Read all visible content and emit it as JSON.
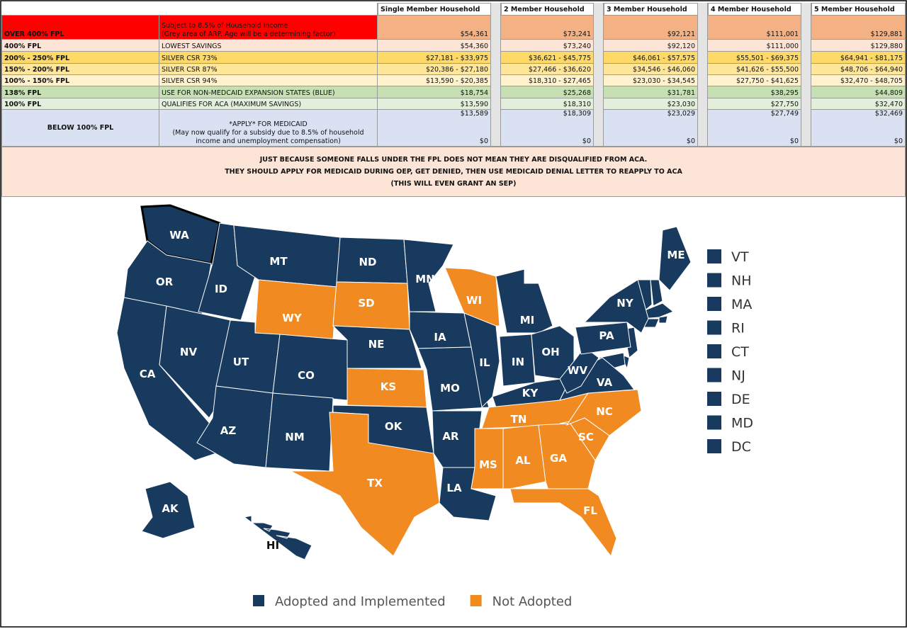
{
  "table": {
    "headers": [
      "Single Member Household",
      "2 Member Household",
      "3 Member Household",
      "4 Member Household",
      "5 Member Household"
    ],
    "rows": [
      {
        "label": "OVER 400% FPL",
        "description": [
          "Subject to 8.5% of Household income",
          "(Grey area of ARP. Age will be a determining factor)"
        ],
        "values": [
          "$54,361",
          "$73,241",
          "$92,121",
          "$111,001",
          "$129,881"
        ]
      },
      {
        "label": "400% FPL",
        "description": [
          "LOWEST SAVINGS"
        ],
        "values": [
          "$54,360",
          "$73,240",
          "$92,120",
          "$111,000",
          "$129,880"
        ]
      },
      {
        "label": "200% - 250% FPL",
        "description": [
          "SILVER CSR 73%"
        ],
        "values": [
          "$27,181 - $33,975",
          "$36,621 - $45,775",
          "$46,061 - $57,575",
          "$55,501 - $69,375",
          "$64,941 - $81,175"
        ]
      },
      {
        "label": "150% - 200% FPL",
        "description": [
          "SILVER CSR 87%"
        ],
        "values": [
          "$20,386 - $27,180",
          "$27,466 - $36,620",
          "$34,546 - $46,060",
          "$41,626 - $55,500",
          "$48,706 - $64,940"
        ]
      },
      {
        "label": "100% - 150% FPL",
        "description": [
          "SILVER CSR 94%"
        ],
        "values": [
          "$13,590 - $20,385",
          "$18,310 - $27,465",
          "$23,030 - $34,545",
          "$27,750 - $41,625",
          "$32,470 - $48,705"
        ]
      },
      {
        "label": "138% FPL",
        "description": [
          "USE FOR NON-MEDCAID EXPANSION STATES (BLUE)"
        ],
        "values": [
          "$18,754",
          "$25,268",
          "$31,781",
          "$38,295",
          "$44,809"
        ]
      },
      {
        "label": "100% FPL",
        "description": [
          "QUALIFIES FOR ACA (MAXIMUM SAVINGS)"
        ],
        "values": [
          "$13,590",
          "$18,310",
          "$23,030",
          "$27,750",
          "$32,470"
        ]
      },
      {
        "label": "BELOW 100% FPL",
        "description": [
          "*APPLY* FOR MEDICAID",
          "(May now qualify for a subsidy due to 8.5% of household",
          "income and unemployment compensation)"
        ],
        "values": [
          "$13,589",
          "$18,309",
          "$23,029",
          "$27,749",
          "$32,469"
        ],
        "bottom_values": [
          "$0",
          "$0",
          "$0",
          "$0",
          "$0"
        ]
      }
    ]
  },
  "notice": [
    "JUST BECAUSE SOMEONE FALLS UNDER THE FPL DOES NOT MEAN THEY ARE DISQUALIFIED FROM ACA.",
    "THEY SHOULD APPLY FOR MEDICAID DURING OEP, GET DENIED, THEN USE MEDICAID DENIAL LETTER TO REAPPLY TO ACA",
    "(THIS WILL EVEN GRANT AN SEP)"
  ],
  "map": {
    "legend": [
      {
        "label": "Adopted and Implemented",
        "color": "#173a5e"
      },
      {
        "label": "Not Adopted",
        "color": "#f28a22"
      }
    ],
    "states": [
      {
        "label": "WA",
        "status": "Adopted and Implemented"
      },
      {
        "label": "OR",
        "status": "Adopted and Implemented"
      },
      {
        "label": "CA",
        "status": "Adopted and Implemented"
      },
      {
        "label": "NV",
        "status": "Adopted and Implemented"
      },
      {
        "label": "ID",
        "status": "Adopted and Implemented"
      },
      {
        "label": "MT",
        "status": "Adopted and Implemented"
      },
      {
        "label": "WY",
        "status": "Not Adopted"
      },
      {
        "label": "UT",
        "status": "Adopted and Implemented"
      },
      {
        "label": "CO",
        "status": "Adopted and Implemented"
      },
      {
        "label": "AZ",
        "status": "Adopted and Implemented"
      },
      {
        "label": "NM",
        "status": "Adopted and Implemented"
      },
      {
        "label": "ND",
        "status": "Adopted and Implemented"
      },
      {
        "label": "SD",
        "status": "Not Adopted"
      },
      {
        "label": "NE",
        "status": "Adopted and Implemented"
      },
      {
        "label": "KS",
        "status": "Not Adopted"
      },
      {
        "label": "OK",
        "status": "Adopted and Implemented"
      },
      {
        "label": "TX",
        "status": "Not Adopted"
      },
      {
        "label": "MN",
        "status": "Adopted and Implemented"
      },
      {
        "label": "IA",
        "status": "Adopted and Implemented"
      },
      {
        "label": "MO",
        "status": "Adopted and Implemented"
      },
      {
        "label": "AR",
        "status": "Adopted and Implemented"
      },
      {
        "label": "LA",
        "status": "Adopted and Implemented"
      },
      {
        "label": "WI",
        "status": "Not Adopted"
      },
      {
        "label": "IL",
        "status": "Adopted and Implemented"
      },
      {
        "label": "MI",
        "status": "Adopted and Implemented"
      },
      {
        "label": "IN",
        "status": "Adopted and Implemented"
      },
      {
        "label": "OH",
        "status": "Adopted and Implemented"
      },
      {
        "label": "KY",
        "status": "Adopted and Implemented"
      },
      {
        "label": "TN",
        "status": "Not Adopted"
      },
      {
        "label": "MS",
        "status": "Not Adopted"
      },
      {
        "label": "AL",
        "status": "Not Adopted"
      },
      {
        "label": "GA",
        "status": "Not Adopted"
      },
      {
        "label": "FL",
        "status": "Not Adopted"
      },
      {
        "label": "SC",
        "status": "Not Adopted"
      },
      {
        "label": "NC",
        "status": "Not Adopted"
      },
      {
        "label": "VA",
        "status": "Adopted and Implemented"
      },
      {
        "label": "WV",
        "status": "Adopted and Implemented"
      },
      {
        "label": "PA",
        "status": "Adopted and Implemented"
      },
      {
        "label": "NY",
        "status": "Adopted and Implemented"
      },
      {
        "label": "ME",
        "status": "Adopted and Implemented"
      },
      {
        "label": "AK",
        "status": "Adopted and Implemented"
      },
      {
        "label": "HI",
        "status": "Adopted and Implemented"
      }
    ],
    "small_states": [
      {
        "label": "VT",
        "status": "Adopted and Implemented"
      },
      {
        "label": "NH",
        "status": "Adopted and Implemented"
      },
      {
        "label": "MA",
        "status": "Adopted and Implemented"
      },
      {
        "label": "RI",
        "status": "Adopted and Implemented"
      },
      {
        "label": "CT",
        "status": "Adopted and Implemented"
      },
      {
        "label": "NJ",
        "status": "Adopted and Implemented"
      },
      {
        "label": "DE",
        "status": "Adopted and Implemented"
      },
      {
        "label": "MD",
        "status": "Adopted and Implemented"
      },
      {
        "label": "DC",
        "status": "Adopted and Implemented"
      }
    ]
  }
}
